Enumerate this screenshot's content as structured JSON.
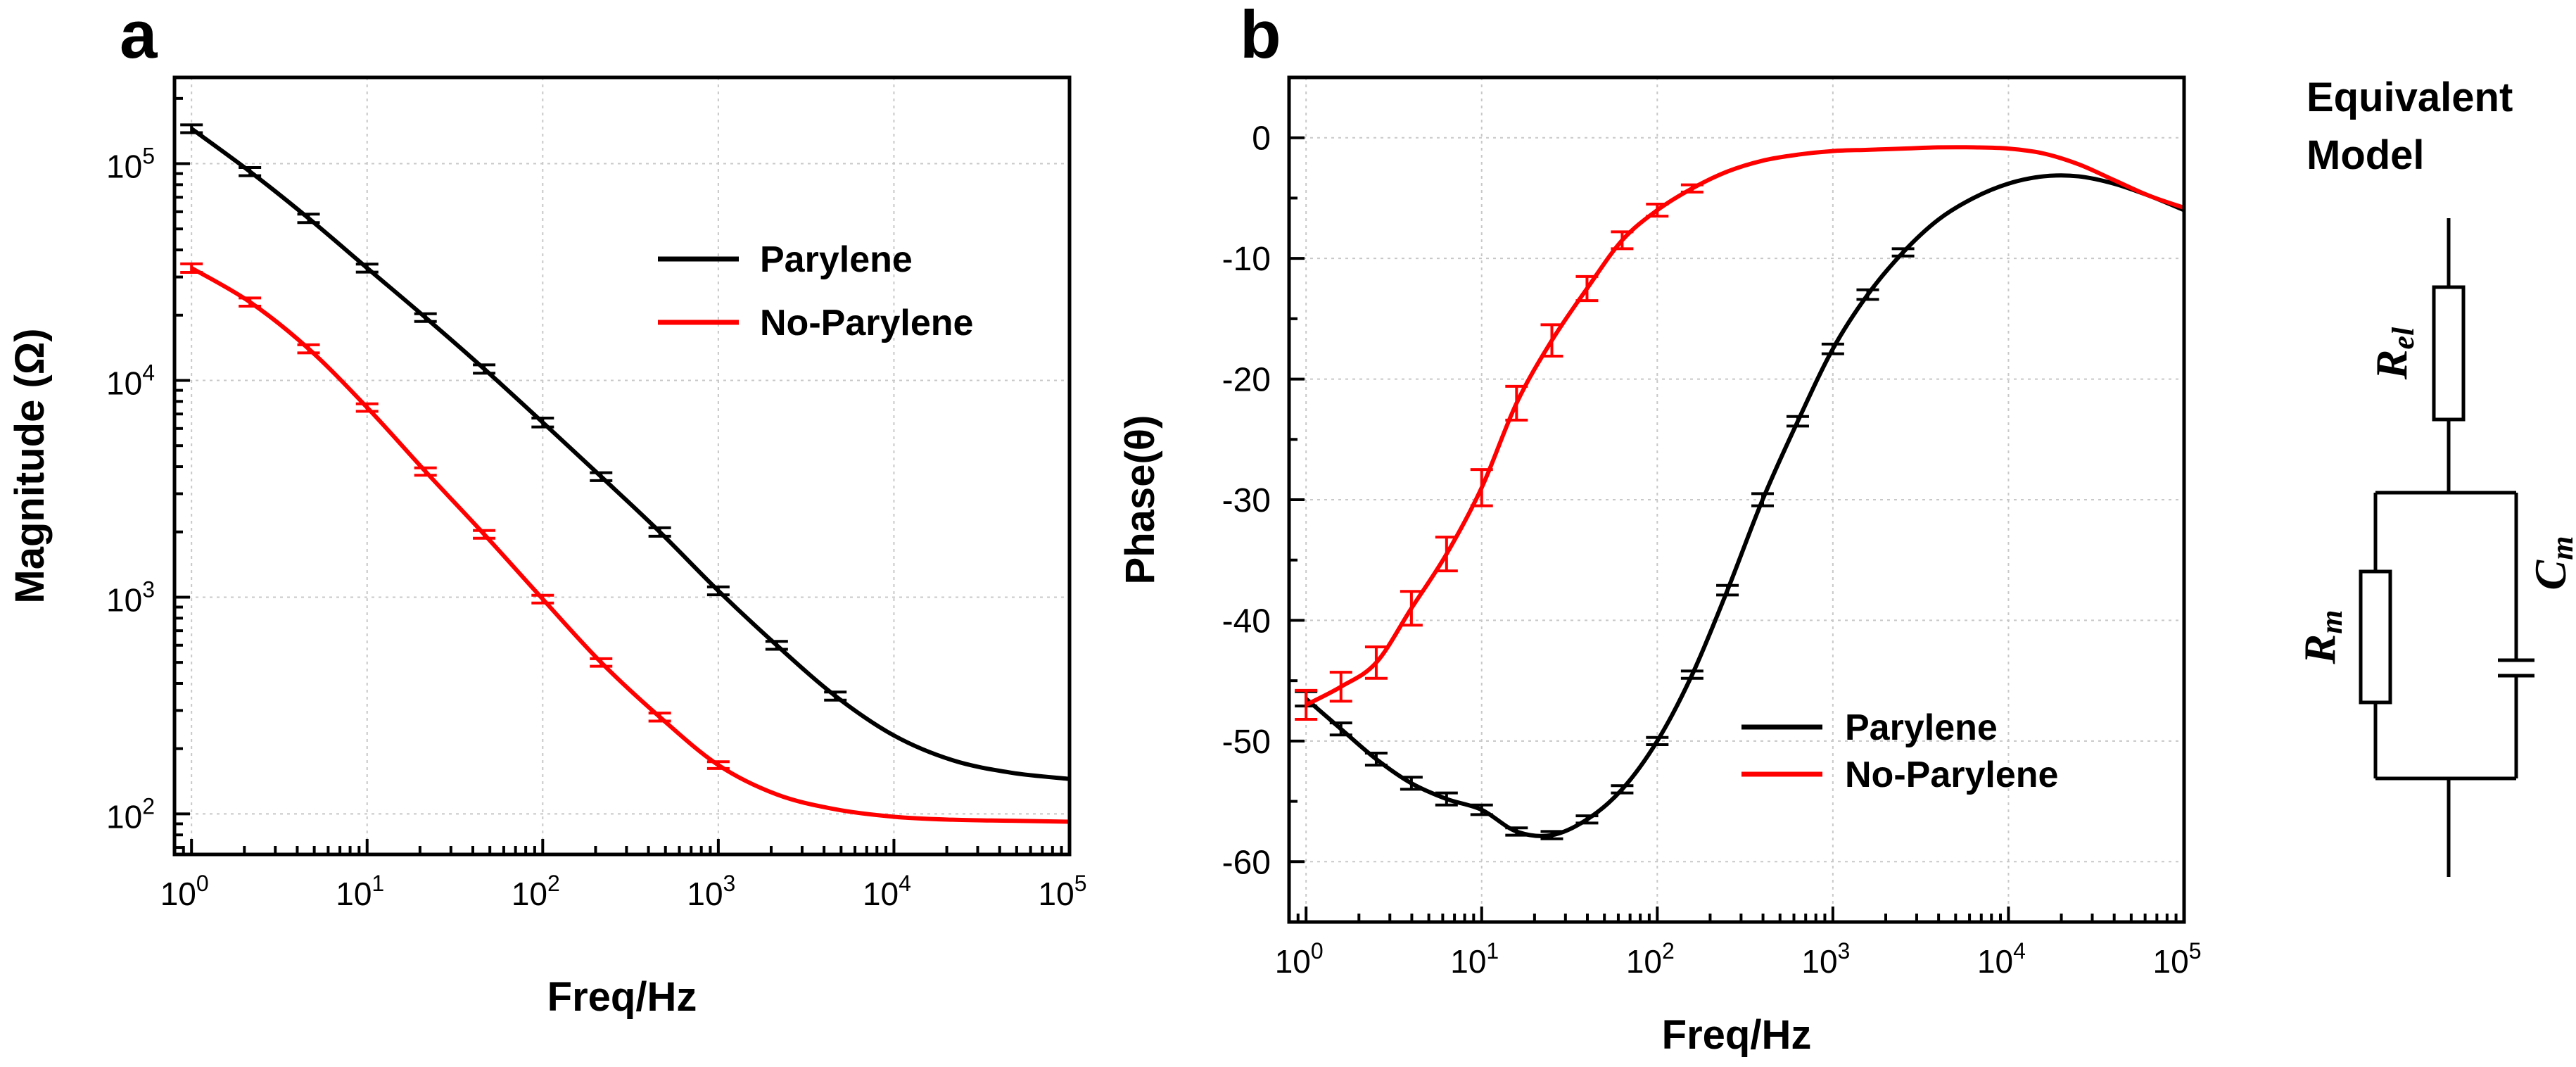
{
  "chart_data": [
    {
      "type": "line",
      "panel": "a",
      "xlabel": "Freq/Hz",
      "ylabel": "Magnitude (Ω)",
      "xscale": "log",
      "yscale": "log",
      "xlim": [
        0.8,
        100000
      ],
      "ylim": [
        65,
        250000
      ],
      "x_ticks": [
        1,
        10,
        100,
        1000,
        10000,
        100000
      ],
      "x_tick_labels": [
        {
          "base": "10",
          "exp": "0"
        },
        {
          "base": "10",
          "exp": "1"
        },
        {
          "base": "10",
          "exp": "2"
        },
        {
          "base": "10",
          "exp": "3"
        },
        {
          "base": "10",
          "exp": "4"
        },
        {
          "base": "10",
          "exp": "5"
        }
      ],
      "y_ticks": [
        100,
        1000,
        10000,
        100000
      ],
      "y_tick_labels": [
        {
          "base": "10",
          "exp": "2"
        },
        {
          "base": "10",
          "exp": "3"
        },
        {
          "base": "10",
          "exp": "4"
        },
        {
          "base": "10",
          "exp": "5"
        }
      ],
      "legend_position": "upper-right",
      "series": [
        {
          "name": "Parylene",
          "color": "#000000",
          "x": [
            1,
            2.15,
            4.64,
            10,
            21.5,
            46.4,
            100,
            215,
            464,
            1000,
            2150,
            4640,
            10000,
            21500,
            46400,
            100000
          ],
          "values": [
            145000,
            92000,
            56000,
            33000,
            19500,
            11300,
            6400,
            3600,
            2000,
            1070,
            600,
            350,
            230,
            177,
            155,
            145
          ],
          "errors": [
            6000,
            4000,
            2500,
            1400,
            800,
            500,
            300,
            150,
            90,
            45,
            25,
            15,
            0,
            0,
            0,
            0
          ]
        },
        {
          "name": "No-Parylene",
          "color": "#ff0000",
          "x": [
            1,
            2.15,
            4.64,
            10,
            21.5,
            46.4,
            100,
            215,
            464,
            1000,
            2150,
            4640,
            10000,
            21500,
            46400,
            100000
          ],
          "values": [
            33000,
            23000,
            14000,
            7500,
            3800,
            1950,
            980,
            500,
            280,
            168,
            123,
            105,
            97,
            94,
            93,
            92
          ],
          "errors": [
            1500,
            1000,
            600,
            300,
            150,
            80,
            40,
            20,
            12,
            6,
            0,
            0,
            0,
            0,
            0,
            0
          ]
        }
      ]
    },
    {
      "type": "line",
      "panel": "b",
      "xlabel": "Freq/Hz",
      "ylabel": "Phase(θ)",
      "xscale": "log",
      "xlim": [
        0.8,
        100000
      ],
      "ylim": [
        -65,
        5
      ],
      "x_ticks": [
        1,
        10,
        100,
        1000,
        10000,
        100000
      ],
      "x_tick_labels": [
        {
          "base": "10",
          "exp": "0"
        },
        {
          "base": "10",
          "exp": "1"
        },
        {
          "base": "10",
          "exp": "2"
        },
        {
          "base": "10",
          "exp": "3"
        },
        {
          "base": "10",
          "exp": "4"
        },
        {
          "base": "10",
          "exp": "5"
        }
      ],
      "y_ticks": [
        0,
        -10,
        -20,
        -30,
        -40,
        -50,
        -60
      ],
      "y_tick_labels": [
        "0",
        "-10",
        "-20",
        "-30",
        "-40",
        "-50",
        "-60"
      ],
      "legend_position": "lower-right",
      "series": [
        {
          "name": "Parylene",
          "color": "#000000",
          "x": [
            1,
            1.58,
            2.51,
            3.98,
            6.31,
            10,
            15.8,
            25.1,
            39.8,
            63.1,
            100,
            158,
            251,
            398,
            631,
            1000,
            1580,
            2510,
            3980,
            6310,
            10000,
            15800,
            25100,
            39800,
            63100,
            100000
          ],
          "values": [
            -46.5,
            -49,
            -51.5,
            -53.5,
            -54.8,
            -55.7,
            -57.5,
            -57.8,
            -56.5,
            -54,
            -50,
            -44.5,
            -37.5,
            -30,
            -23.5,
            -17.5,
            -13,
            -9.5,
            -6.8,
            -5,
            -3.8,
            -3.2,
            -3.2,
            -3.8,
            -4.8,
            -6
          ],
          "errors": [
            0.6,
            0.5,
            0.5,
            0.5,
            0.5,
            0.4,
            0.3,
            0.3,
            0.3,
            0.3,
            0.3,
            0.3,
            0.4,
            0.5,
            0.4,
            0.4,
            0.4,
            0.3,
            0,
            0,
            0,
            0,
            0,
            0,
            0,
            0
          ]
        },
        {
          "name": "No-Parylene",
          "color": "#ff0000",
          "x": [
            1,
            1.58,
            2.51,
            3.98,
            6.31,
            10,
            15.8,
            25.1,
            39.8,
            63.1,
            100,
            158,
            251,
            398,
            631,
            1000,
            1580,
            2510,
            3980,
            6310,
            10000,
            15800,
            25100,
            39800,
            63100,
            100000
          ],
          "values": [
            -47,
            -45.5,
            -43.5,
            -39,
            -34.5,
            -29,
            -22,
            -16.8,
            -12.5,
            -8.5,
            -6,
            -4.2,
            -2.8,
            -1.9,
            -1.4,
            -1.1,
            -1,
            -0.9,
            -0.8,
            -0.8,
            -0.9,
            -1.3,
            -2.2,
            -3.5,
            -4.8,
            -5.8
          ],
          "errors": [
            1.2,
            1.2,
            1.3,
            1.4,
            1.4,
            1.5,
            1.4,
            1.3,
            1,
            0.7,
            0.5,
            0.3,
            0,
            0,
            0,
            0,
            0,
            0,
            0,
            0,
            0,
            0,
            0,
            0,
            0,
            0
          ]
        }
      ]
    }
  ],
  "equivalent_model": {
    "title_line1": "Equivalent",
    "title_line2": "Model",
    "r_el": {
      "base": "R",
      "sub": "el"
    },
    "r_m": {
      "base": "R",
      "sub": "m"
    },
    "c_m": {
      "base": "C",
      "sub": "m"
    }
  }
}
